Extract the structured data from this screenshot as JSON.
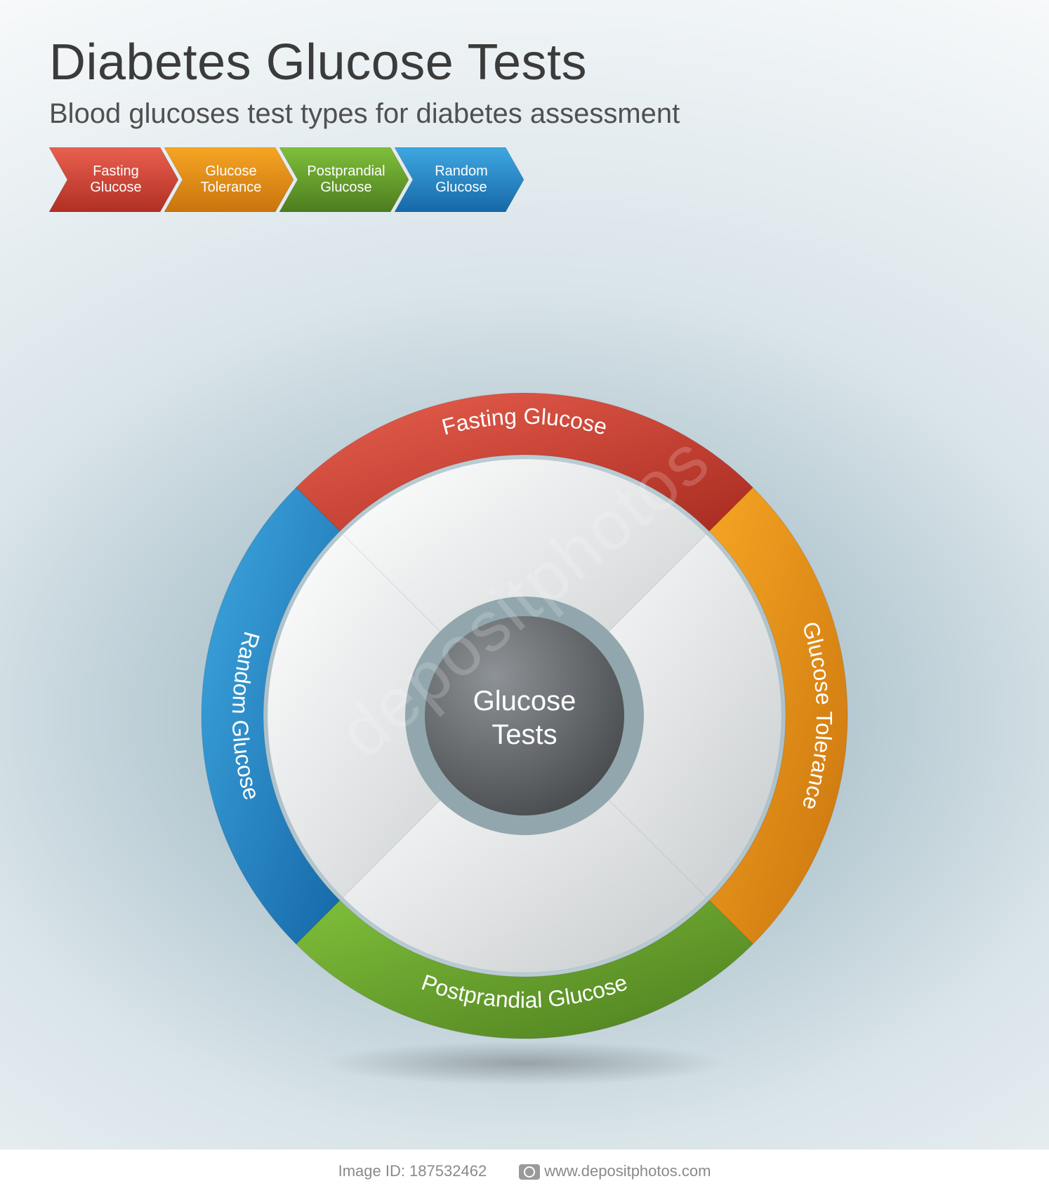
{
  "header": {
    "title": "Diabetes Glucose Tests",
    "subtitle": "Blood glucoses test types for diabetes assessment",
    "title_color": "#3b3b3b",
    "title_fontsize": 72,
    "subtitle_color": "#505050",
    "subtitle_fontsize": 40
  },
  "background": {
    "gradient_center": "#8aa8b4",
    "gradient_mid": "#d9e4e9",
    "gradient_edge": "#ffffff"
  },
  "arrow_strip": {
    "type": "chevron-process",
    "item_width": 184,
    "item_height": 92,
    "label_fontsize": 20,
    "label_color": "#ffffff",
    "items": [
      {
        "label": "Fasting\nGlucose",
        "fill_light": "#e9604f",
        "fill_dark": "#b02f23"
      },
      {
        "label": "Glucose\nTolerance",
        "fill_light": "#f6a523",
        "fill_dark": "#c9740e"
      },
      {
        "label": "Postprandial\nGlucose",
        "fill_light": "#7fbf3a",
        "fill_dark": "#4d7d1f"
      },
      {
        "label": "Random\nGlucose",
        "fill_light": "#3fa8e0",
        "fill_dark": "#1668a8"
      }
    ]
  },
  "wheel": {
    "type": "ring-segment-diagram",
    "diameter": 960,
    "outer_radius": 460,
    "ring_thickness": 88,
    "center_label": "Glucose\nTests",
    "center_label_fontsize": 40,
    "center_label_color": "#ffffff",
    "inner_hub_fill_dark": "#4a4d50",
    "inner_hub_fill_light": "#8d9296",
    "inner_hub_border": "#91a7ad",
    "inner_hub_border_width": 28,
    "disc_fill_light": "#ffffff",
    "disc_fill_dark": "#c8ccce",
    "segment_label_fontsize": 32,
    "segment_label_color": "#ffffff",
    "segments": [
      {
        "label": "Fasting Glucose",
        "start": -45,
        "end": 45,
        "fill_light": "#e9604f",
        "fill_dark": "#a82b20"
      },
      {
        "label": "Glucose Tolerance",
        "start": 45,
        "end": 135,
        "fill_light": "#f6a523",
        "fill_dark": "#c9740e"
      },
      {
        "label": "Postprandial Glucose",
        "start": 135,
        "end": 225,
        "fill_light": "#7fbf3a",
        "fill_dark": "#4d7d1f"
      },
      {
        "label": "Random Glucose",
        "start": 225,
        "end": 315,
        "fill_light": "#3fa8e0",
        "fill_dark": "#1668a8"
      }
    ]
  },
  "watermark": {
    "diagonal_text": "depositphotos",
    "footer_image_id": "Image ID: 187532462",
    "footer_site": "www.depositphotos.com",
    "footer_color": "#8a8a8a",
    "footer_fontsize": 22
  }
}
